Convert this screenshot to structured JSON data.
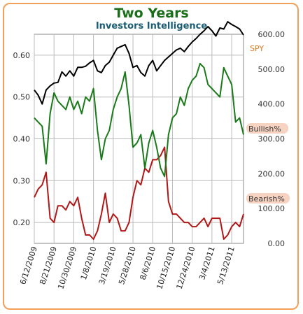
{
  "header": {
    "title": "Two Years",
    "subtitle": "Investors Intelligence"
  },
  "colors": {
    "spy": "#000000",
    "bullish": "#1a7a1a",
    "bearish": "#b01818",
    "label_bg": "#f7d3c2",
    "spy_label": "#e07a20",
    "title": "#1a6e1a",
    "subtitle": "#1a5c73",
    "frame": "#f0a05a"
  },
  "chart_data": {
    "type": "line",
    "title": "Two Years",
    "subtitle": "Investors Intelligence",
    "grid": true,
    "left_axis": {
      "range": [
        0.15,
        0.65
      ],
      "ticks": [
        "0.20",
        "0.30",
        "0.40",
        "0.50",
        "0.60"
      ]
    },
    "right_axis": {
      "range": [
        0,
        600
      ],
      "ticks": [
        "0.00",
        "100.00",
        "200.00",
        "300.00",
        "400.00",
        "500.00",
        "600.00"
      ]
    },
    "x_range": [
      "2009-06-12",
      "2011-06-24"
    ],
    "x_ticks": [
      "6/12/2009",
      "8/21/2009",
      "10/30/2009",
      "1/8/2010",
      "3/19/2010",
      "5/28/2010",
      "8/6/2010",
      "10/15/2010",
      "12/24/2010",
      "3/4/2011",
      "5/13/2011"
    ],
    "legend": {
      "spy": "SPY",
      "bullish": "Bullish%",
      "bearish": "Bearish%"
    },
    "series": [
      {
        "name": "SPY",
        "axis": "right",
        "points": [
          [
            "2009-06-12",
            440
          ],
          [
            "2009-06-26",
            425
          ],
          [
            "2009-07-10",
            400
          ],
          [
            "2009-07-24",
            440
          ],
          [
            "2009-08-07",
            452
          ],
          [
            "2009-08-21",
            460
          ],
          [
            "2009-09-04",
            462
          ],
          [
            "2009-09-18",
            492
          ],
          [
            "2009-10-02",
            480
          ],
          [
            "2009-10-16",
            495
          ],
          [
            "2009-10-30",
            480
          ],
          [
            "2009-11-13",
            505
          ],
          [
            "2009-11-27",
            505
          ],
          [
            "2009-12-11",
            508
          ],
          [
            "2009-12-25",
            518
          ],
          [
            "2010-01-08",
            525
          ],
          [
            "2010-01-22",
            495
          ],
          [
            "2010-02-05",
            490
          ],
          [
            "2010-02-19",
            510
          ],
          [
            "2010-03-05",
            520
          ],
          [
            "2010-03-19",
            540
          ],
          [
            "2010-04-02",
            560
          ],
          [
            "2010-04-16",
            565
          ],
          [
            "2010-04-30",
            570
          ],
          [
            "2010-05-14",
            545
          ],
          [
            "2010-05-28",
            505
          ],
          [
            "2010-06-11",
            510
          ],
          [
            "2010-06-25",
            490
          ],
          [
            "2010-07-09",
            480
          ],
          [
            "2010-07-23",
            510
          ],
          [
            "2010-08-06",
            525
          ],
          [
            "2010-08-20",
            495
          ],
          [
            "2010-09-03",
            510
          ],
          [
            "2010-09-17",
            525
          ],
          [
            "2010-10-01",
            535
          ],
          [
            "2010-10-15",
            545
          ],
          [
            "2010-10-29",
            555
          ],
          [
            "2010-11-12",
            560
          ],
          [
            "2010-11-26",
            550
          ],
          [
            "2010-12-10",
            565
          ],
          [
            "2010-12-24",
            578
          ],
          [
            "2011-01-07",
            588
          ],
          [
            "2011-01-21",
            600
          ],
          [
            "2011-02-04",
            610
          ],
          [
            "2011-02-18",
            622
          ],
          [
            "2011-03-04",
            610
          ],
          [
            "2011-03-18",
            595
          ],
          [
            "2011-04-01",
            618
          ],
          [
            "2011-04-15",
            615
          ],
          [
            "2011-04-29",
            636
          ],
          [
            "2011-05-13",
            628
          ],
          [
            "2011-05-27",
            622
          ],
          [
            "2011-06-10",
            615
          ],
          [
            "2011-06-24",
            598
          ]
        ]
      },
      {
        "name": "Bullish%",
        "axis": "left",
        "points": [
          [
            "2009-06-12",
            0.45
          ],
          [
            "2009-06-26",
            0.44
          ],
          [
            "2009-07-10",
            0.43
          ],
          [
            "2009-07-24",
            0.34
          ],
          [
            "2009-08-07",
            0.46
          ],
          [
            "2009-08-21",
            0.51
          ],
          [
            "2009-09-04",
            0.49
          ],
          [
            "2009-09-18",
            0.48
          ],
          [
            "2009-10-02",
            0.47
          ],
          [
            "2009-10-16",
            0.5
          ],
          [
            "2009-10-30",
            0.47
          ],
          [
            "2009-11-13",
            0.49
          ],
          [
            "2009-11-27",
            0.46
          ],
          [
            "2009-12-11",
            0.5
          ],
          [
            "2009-12-25",
            0.49
          ],
          [
            "2010-01-08",
            0.52
          ],
          [
            "2010-01-22",
            0.42
          ],
          [
            "2010-02-05",
            0.35
          ],
          [
            "2010-02-19",
            0.4
          ],
          [
            "2010-03-05",
            0.42
          ],
          [
            "2010-03-19",
            0.47
          ],
          [
            "2010-04-02",
            0.5
          ],
          [
            "2010-04-16",
            0.52
          ],
          [
            "2010-04-30",
            0.56
          ],
          [
            "2010-05-14",
            0.48
          ],
          [
            "2010-05-28",
            0.38
          ],
          [
            "2010-06-11",
            0.39
          ],
          [
            "2010-06-25",
            0.41
          ],
          [
            "2010-07-09",
            0.33
          ],
          [
            "2010-07-23",
            0.39
          ],
          [
            "2010-08-06",
            0.42
          ],
          [
            "2010-08-20",
            0.38
          ],
          [
            "2010-09-03",
            0.33
          ],
          [
            "2010-09-17",
            0.31
          ],
          [
            "2010-10-01",
            0.41
          ],
          [
            "2010-10-15",
            0.45
          ],
          [
            "2010-10-29",
            0.46
          ],
          [
            "2010-11-12",
            0.5
          ],
          [
            "2010-11-26",
            0.48
          ],
          [
            "2010-12-10",
            0.52
          ],
          [
            "2010-12-24",
            0.54
          ],
          [
            "2011-01-07",
            0.55
          ],
          [
            "2011-01-21",
            0.58
          ],
          [
            "2011-02-04",
            0.57
          ],
          [
            "2011-02-18",
            0.53
          ],
          [
            "2011-03-04",
            0.52
          ],
          [
            "2011-03-18",
            0.51
          ],
          [
            "2011-04-01",
            0.5
          ],
          [
            "2011-04-15",
            0.57
          ],
          [
            "2011-04-29",
            0.55
          ],
          [
            "2011-05-13",
            0.53
          ],
          [
            "2011-05-27",
            0.44
          ],
          [
            "2011-06-10",
            0.45
          ],
          [
            "2011-06-24",
            0.41
          ]
        ]
      },
      {
        "name": "Bearish%",
        "axis": "left",
        "points": [
          [
            "2009-06-12",
            0.26
          ],
          [
            "2009-06-26",
            0.28
          ],
          [
            "2009-07-10",
            0.29
          ],
          [
            "2009-07-24",
            0.32
          ],
          [
            "2009-08-07",
            0.21
          ],
          [
            "2009-08-21",
            0.2
          ],
          [
            "2009-09-04",
            0.24
          ],
          [
            "2009-09-18",
            0.24
          ],
          [
            "2009-10-02",
            0.23
          ],
          [
            "2009-10-16",
            0.25
          ],
          [
            "2009-10-30",
            0.24
          ],
          [
            "2009-11-13",
            0.26
          ],
          [
            "2009-11-27",
            0.21
          ],
          [
            "2009-12-11",
            0.17
          ],
          [
            "2009-12-25",
            0.17
          ],
          [
            "2010-01-08",
            0.16
          ],
          [
            "2010-01-22",
            0.18
          ],
          [
            "2010-02-05",
            0.22
          ],
          [
            "2010-02-19",
            0.27
          ],
          [
            "2010-03-05",
            0.2
          ],
          [
            "2010-03-19",
            0.22
          ],
          [
            "2010-04-02",
            0.21
          ],
          [
            "2010-04-16",
            0.18
          ],
          [
            "2010-04-30",
            0.18
          ],
          [
            "2010-05-14",
            0.2
          ],
          [
            "2010-05-28",
            0.26
          ],
          [
            "2010-06-11",
            0.3
          ],
          [
            "2010-06-25",
            0.29
          ],
          [
            "2010-07-09",
            0.33
          ],
          [
            "2010-07-23",
            0.32
          ],
          [
            "2010-08-06",
            0.35
          ],
          [
            "2010-08-20",
            0.35
          ],
          [
            "2010-09-03",
            0.36
          ],
          [
            "2010-09-17",
            0.38
          ],
          [
            "2010-10-01",
            0.25
          ],
          [
            "2010-10-15",
            0.22
          ],
          [
            "2010-10-29",
            0.22
          ],
          [
            "2010-11-12",
            0.21
          ],
          [
            "2010-11-26",
            0.2
          ],
          [
            "2010-12-10",
            0.2
          ],
          [
            "2010-12-24",
            0.19
          ],
          [
            "2011-01-07",
            0.19
          ],
          [
            "2011-01-21",
            0.2
          ],
          [
            "2011-02-04",
            0.21
          ],
          [
            "2011-02-18",
            0.19
          ],
          [
            "2011-03-04",
            0.21
          ],
          [
            "2011-03-18",
            0.21
          ],
          [
            "2011-04-01",
            0.21
          ],
          [
            "2011-04-15",
            0.16
          ],
          [
            "2011-04-29",
            0.17
          ],
          [
            "2011-05-13",
            0.19
          ],
          [
            "2011-05-27",
            0.2
          ],
          [
            "2011-06-10",
            0.19
          ],
          [
            "2011-06-24",
            0.22
          ]
        ]
      }
    ]
  }
}
